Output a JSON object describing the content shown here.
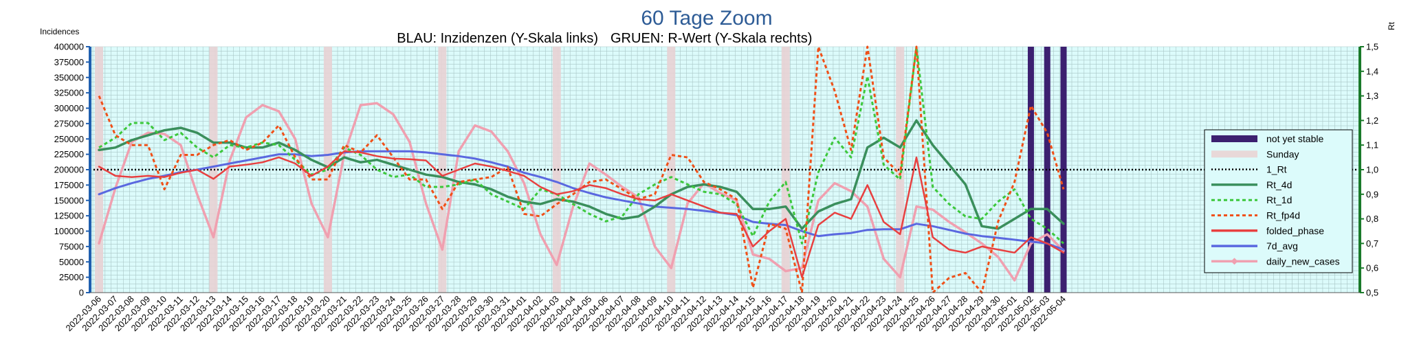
{
  "chart_data": {
    "type": "line",
    "title": "60 Tage Zoom",
    "subtitle_left": "BLAU: Inzidenzen (Y-Skala links)",
    "subtitle_right": "GRUEN: R-Wert (Y-Skala rechts)",
    "ylabel_left": "Incidences",
    "ylabel_right": "Rt",
    "ylim_left": [
      0,
      400000
    ],
    "ylim_right": [
      0.5,
      1.5
    ],
    "yticks_left": [
      "0",
      "25000",
      "50000",
      "75000",
      "100000",
      "125000",
      "150000",
      "175000",
      "200000",
      "225000",
      "250000",
      "275000",
      "300000",
      "325000",
      "350000",
      "375000",
      "400000"
    ],
    "yticks_right": [
      "0,5",
      "0,6",
      "0,7",
      "0,8",
      "0,9",
      "1,0",
      "1,1",
      "1,2",
      "1,3",
      "1,4",
      "1,5"
    ],
    "grid": true,
    "legend_position": "right",
    "dates": [
      "2022-03-06",
      "2022-03-07",
      "2022-03-08",
      "2022-03-09",
      "2022-03-10",
      "2022-03-11",
      "2022-03-12",
      "2022-03-13",
      "2022-03-14",
      "2022-03-15",
      "2022-03-16",
      "2022-03-17",
      "2022-03-18",
      "2022-03-19",
      "2022-03-20",
      "2022-03-21",
      "2022-03-22",
      "2022-03-23",
      "2022-03-24",
      "2022-03-25",
      "2022-03-26",
      "2022-03-27",
      "2022-03-28",
      "2022-03-29",
      "2022-03-30",
      "2022-03-31",
      "2022-04-01",
      "2022-04-02",
      "2022-04-03",
      "2022-04-04",
      "2022-04-05",
      "2022-04-06",
      "2022-04-07",
      "2022-04-08",
      "2022-04-09",
      "2022-04-10",
      "2022-04-11",
      "2022-04-12",
      "2022-04-13",
      "2022-04-14",
      "2022-04-15",
      "2022-04-16",
      "2022-04-17",
      "2022-04-18",
      "2022-04-19",
      "2022-04-20",
      "2022-04-21",
      "2022-04-22",
      "2022-04-23",
      "2022-04-24",
      "2022-04-25",
      "2022-04-26",
      "2022-04-27",
      "2022-04-28",
      "2022-04-29",
      "2022-04-30",
      "2022-05-01",
      "2022-05-02",
      "2022-05-03",
      "2022-05-04"
    ],
    "sundays": [
      "2022-03-06",
      "2022-03-13",
      "2022-03-20",
      "2022-03-27",
      "2022-04-03",
      "2022-04-10",
      "2022-04-17",
      "2022-04-24"
    ],
    "not_yet_stable": [
      "2022-05-02",
      "2022-05-03",
      "2022-05-04"
    ],
    "reference_line": {
      "name": "1_Rt",
      "value": 1.0,
      "axis": "right",
      "color": "#000000"
    },
    "series": [
      {
        "name": "Rt_4d",
        "axis": "right",
        "color": "#3a8f5c",
        "style": "solid",
        "values": [
          1.08,
          1.09,
          1.12,
          1.14,
          1.16,
          1.17,
          1.15,
          1.11,
          1.11,
          1.09,
          1.09,
          1.11,
          1.08,
          1.04,
          1.01,
          1.05,
          1.03,
          1.04,
          1.02,
          1.0,
          0.98,
          0.97,
          0.95,
          0.94,
          0.92,
          0.89,
          0.87,
          0.86,
          0.88,
          0.87,
          0.85,
          0.82,
          0.8,
          0.81,
          0.85,
          0.9,
          0.93,
          0.94,
          0.93,
          0.91,
          0.84,
          0.84,
          0.85,
          0.76,
          0.83,
          0.86,
          0.88,
          1.09,
          1.13,
          1.09,
          1.2,
          1.1,
          1.02,
          0.94,
          0.77,
          0.76,
          0.8,
          0.84,
          0.84,
          0.78
        ]
      },
      {
        "name": "Rt_1d",
        "axis": "right",
        "color": "#3cc83c",
        "style": "dotted",
        "values": [
          1.09,
          1.13,
          1.19,
          1.19,
          1.12,
          1.15,
          1.09,
          1.05,
          1.1,
          1.09,
          1.11,
          1.1,
          1.04,
          0.98,
          1.0,
          1.09,
          1.06,
          1.0,
          0.97,
          0.98,
          0.93,
          0.93,
          0.94,
          0.96,
          0.9,
          0.87,
          0.84,
          0.92,
          0.9,
          0.86,
          0.82,
          0.79,
          0.81,
          0.9,
          0.94,
          0.97,
          0.94,
          0.91,
          0.9,
          0.86,
          0.73,
          0.87,
          0.95,
          0.7,
          0.99,
          1.13,
          1.05,
          1.38,
          1.02,
          0.96,
          1.55,
          0.93,
          0.86,
          0.81,
          0.8,
          0.87,
          0.92,
          0.8,
          0.76,
          0.7
        ]
      },
      {
        "name": "Rt_fp4d",
        "axis": "right",
        "color": "#f05018",
        "style": "dotted",
        "values": [
          1.3,
          1.14,
          1.1,
          1.1,
          0.92,
          1.06,
          1.06,
          1.1,
          1.12,
          1.08,
          1.11,
          1.18,
          1.05,
          0.96,
          0.96,
          1.1,
          1.07,
          1.14,
          1.05,
          0.96,
          0.96,
          0.84,
          0.95,
          0.96,
          0.97,
          1.01,
          0.82,
          0.81,
          0.86,
          0.9,
          0.95,
          0.96,
          0.92,
          0.88,
          0.9,
          1.06,
          1.05,
          0.95,
          0.92,
          0.88,
          0.52,
          0.78,
          0.76,
          0.44,
          1.55,
          1.32,
          1.08,
          1.55,
          1.05,
          0.98,
          1.65,
          0.5,
          0.56,
          0.58,
          0.45,
          0.79,
          0.95,
          1.26,
          1.15,
          0.92
        ]
      },
      {
        "name": "folded_phase",
        "axis": "left",
        "color": "#e84040",
        "style": "solid",
        "values": [
          205000,
          190000,
          188000,
          190000,
          188000,
          195000,
          200000,
          185000,
          205000,
          208000,
          212000,
          220000,
          210000,
          190000,
          205000,
          230000,
          228000,
          222000,
          218000,
          217000,
          215000,
          190000,
          200000,
          210000,
          205000,
          198000,
          190000,
          172000,
          160000,
          165000,
          175000,
          170000,
          160000,
          152000,
          150000,
          160000,
          150000,
          140000,
          130000,
          128000,
          75000,
          100000,
          120000,
          25000,
          110000,
          130000,
          120000,
          175000,
          115000,
          95000,
          220000,
          90000,
          70000,
          65000,
          75000,
          70000,
          65000,
          90000,
          80000,
          65000
        ]
      },
      {
        "name": "7d_avg",
        "axis": "left",
        "color": "#5a68e0",
        "style": "solid",
        "values": [
          160000,
          170000,
          178000,
          185000,
          190000,
          196000,
          200000,
          205000,
          210000,
          215000,
          220000,
          225000,
          225000,
          222000,
          224000,
          228000,
          230000,
          230000,
          230000,
          230000,
          228000,
          225000,
          222000,
          218000,
          212000,
          205000,
          195000,
          188000,
          180000,
          170000,
          162000,
          155000,
          150000,
          145000,
          140000,
          138000,
          136000,
          133000,
          130000,
          126000,
          115000,
          112000,
          110000,
          100000,
          92000,
          95000,
          97000,
          102000,
          103000,
          103000,
          112000,
          108000,
          102000,
          96000,
          92000,
          89000,
          86000,
          83000,
          80000,
          70000
        ]
      },
      {
        "name": "daily_new_cases",
        "axis": "left",
        "color": "#f0a0b0",
        "style": "solid",
        "values": [
          80000,
          170000,
          245000,
          260000,
          258000,
          240000,
          160000,
          90000,
          215000,
          285000,
          305000,
          295000,
          250000,
          145000,
          90000,
          225000,
          305000,
          308000,
          290000,
          245000,
          145000,
          70000,
          230000,
          272000,
          262000,
          230000,
          178000,
          95000,
          45000,
          140000,
          210000,
          192000,
          172000,
          155000,
          75000,
          40000,
          145000,
          178000,
          162000,
          150000,
          62000,
          55000,
          35000,
          40000,
          150000,
          178000,
          165000,
          140000,
          55000,
          25000,
          140000,
          135000,
          115000,
          98000,
          80000,
          58000,
          20000,
          80000,
          95000,
          68000
        ]
      }
    ],
    "legend": [
      {
        "label": "not yet stable",
        "color": "#3c2070",
        "kind": "bar"
      },
      {
        "label": "Sunday",
        "color": "#e8d8d8",
        "kind": "bar"
      },
      {
        "label": "1_Rt",
        "color": "#000000",
        "kind": "dots"
      },
      {
        "label": "Rt_4d",
        "color": "#3a8f5c",
        "kind": "solid"
      },
      {
        "label": "Rt_1d",
        "color": "#3cc83c",
        "kind": "dotted"
      },
      {
        "label": "Rt_fp4d",
        "color": "#f05018",
        "kind": "dotted"
      },
      {
        "label": "folded_phase",
        "color": "#e84040",
        "kind": "solid"
      },
      {
        "label": "7d_avg",
        "color": "#5a68e0",
        "kind": "solid"
      },
      {
        "label": "daily_new_cases",
        "color": "#f0a0b0",
        "kind": "marker"
      }
    ]
  }
}
